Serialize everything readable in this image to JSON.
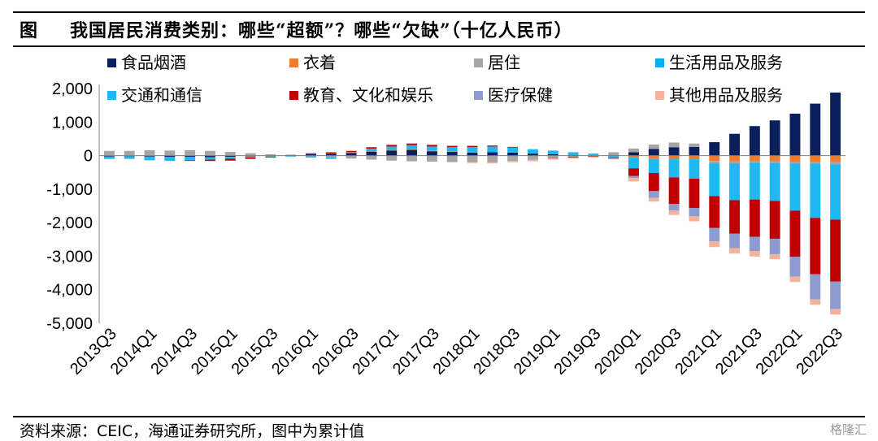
{
  "header": {
    "prefix": "图",
    "title": "我国居民消费类别：哪些“超额”？哪些“欠缺”（十亿人民币）"
  },
  "footer": {
    "source": "资料来源：CEIC，海通证券研究所，图中为累计值",
    "watermark": "格隆汇"
  },
  "colors": {
    "food": "#0b1f5c",
    "clothing": "#ed7d31",
    "housing": "#a5a5a5",
    "household": "#00b0f0",
    "transport": "#1fb8f0",
    "education": "#c00000",
    "medical": "#8e9bd1",
    "other": "#f4b29a"
  },
  "chart_data": {
    "type": "bar",
    "stacked": true,
    "title": "",
    "xlabel": "",
    "ylabel": "",
    "ylim": [
      -5000,
      2000
    ],
    "yticks": [
      -5000,
      -4000,
      -3000,
      -2000,
      -1000,
      0,
      1000,
      2000
    ],
    "ytick_labels": [
      "-5,000",
      "-4,000",
      "-3,000",
      "-2,000",
      "-1,000",
      "0",
      "1,000",
      "2,000"
    ],
    "legend_position": "top",
    "categories": [
      "2013Q3",
      "2013Q4",
      "2014Q1",
      "2014Q2",
      "2014Q3",
      "2014Q4",
      "2015Q1",
      "2015Q2",
      "2015Q3",
      "2015Q4",
      "2016Q1",
      "2016Q2",
      "2016Q3",
      "2016Q4",
      "2017Q1",
      "2017Q2",
      "2017Q3",
      "2017Q4",
      "2018Q1",
      "2018Q2",
      "2018Q3",
      "2018Q4",
      "2019Q1",
      "2019Q2",
      "2019Q3",
      "2019Q4",
      "2020Q1",
      "2020Q2",
      "2020Q3",
      "2020Q4",
      "2021Q1",
      "2021Q2",
      "2021Q3",
      "2021Q4",
      "2022Q1",
      "2022Q2",
      "2022Q3"
    ],
    "tick_labels": [
      "2013Q3",
      "2014Q1",
      "2014Q3",
      "2015Q1",
      "2015Q3",
      "2016Q1",
      "2016Q3",
      "2017Q1",
      "2017Q3",
      "2018Q1",
      "2018Q3",
      "2019Q1",
      "2019Q3",
      "2020Q1",
      "2020Q3",
      "2021Q1",
      "2021Q3",
      "2022Q1",
      "2022Q3"
    ],
    "series": [
      {
        "name": "食品烟酒",
        "key": "food",
        "values": [
          -30,
          -20,
          -30,
          -40,
          -40,
          -50,
          -40,
          -20,
          -10,
          10,
          40,
          60,
          80,
          120,
          150,
          170,
          130,
          110,
          90,
          100,
          90,
          60,
          40,
          20,
          0,
          10,
          100,
          200,
          250,
          260,
          400,
          650,
          880,
          1050,
          1250,
          1550,
          1880
        ]
      },
      {
        "name": "衣着",
        "key": "clothing",
        "values": [
          10,
          10,
          10,
          10,
          10,
          0,
          -10,
          -10,
          -10,
          0,
          10,
          10,
          10,
          10,
          20,
          20,
          20,
          10,
          10,
          10,
          10,
          0,
          -10,
          -10,
          -10,
          -10,
          -60,
          -100,
          -110,
          -110,
          -160,
          -170,
          -170,
          -170,
          -200,
          -200,
          -200
        ]
      },
      {
        "name": "居住",
        "key": "housing",
        "values": [
          130,
          130,
          150,
          140,
          150,
          140,
          110,
          70,
          40,
          20,
          -20,
          -60,
          -90,
          -120,
          -150,
          -170,
          -180,
          -190,
          -200,
          -200,
          -160,
          -120,
          -60,
          -30,
          10,
          90,
          110,
          130,
          140,
          100,
          -70,
          -60,
          -40,
          -50,
          -30,
          -40,
          -60
        ]
      },
      {
        "name": "生活用品及服务",
        "key": "household",
        "values": [
          0,
          0,
          0,
          0,
          0,
          0,
          0,
          0,
          0,
          0,
          0,
          0,
          0,
          0,
          0,
          0,
          0,
          0,
          0,
          0,
          0,
          0,
          0,
          0,
          0,
          0,
          0,
          0,
          0,
          0,
          0,
          0,
          0,
          0,
          0,
          0,
          0
        ]
      },
      {
        "name": "交通和通信",
        "key": "transport",
        "values": [
          -70,
          -80,
          -110,
          -120,
          -100,
          -70,
          -40,
          -30,
          -20,
          -30,
          -40,
          -40,
          20,
          80,
          100,
          120,
          120,
          130,
          150,
          160,
          140,
          130,
          110,
          80,
          50,
          -60,
          -320,
          -420,
          -540,
          -580,
          -980,
          -1100,
          -1100,
          -1130,
          -1410,
          -1620,
          -1650
        ]
      },
      {
        "name": "教育、文化和娱乐",
        "key": "education",
        "values": [
          0,
          0,
          0,
          0,
          -20,
          -40,
          -60,
          -40,
          -20,
          0,
          20,
          30,
          30,
          40,
          50,
          50,
          50,
          40,
          40,
          30,
          20,
          0,
          -10,
          -20,
          -20,
          -20,
          -230,
          -540,
          -790,
          -870,
          -950,
          -1000,
          -1110,
          -1130,
          -1380,
          -1680,
          -1850
        ]
      },
      {
        "name": "医疗保健",
        "key": "medical",
        "values": [
          0,
          0,
          0,
          0,
          0,
          0,
          0,
          0,
          0,
          0,
          0,
          0,
          0,
          0,
          0,
          0,
          0,
          0,
          0,
          0,
          0,
          0,
          0,
          0,
          0,
          0,
          -60,
          -200,
          -200,
          -250,
          -400,
          -430,
          -430,
          -460,
          -590,
          -750,
          -820
        ]
      },
      {
        "name": "其他用品及服务",
        "key": "other",
        "values": [
          0,
          0,
          0,
          0,
          0,
          0,
          0,
          0,
          0,
          0,
          0,
          0,
          0,
          0,
          0,
          0,
          0,
          -10,
          -20,
          -30,
          -40,
          -50,
          -40,
          -30,
          -30,
          -20,
          -100,
          -110,
          -130,
          -150,
          -170,
          -160,
          -160,
          -150,
          -160,
          -160,
          -160
        ]
      }
    ]
  }
}
